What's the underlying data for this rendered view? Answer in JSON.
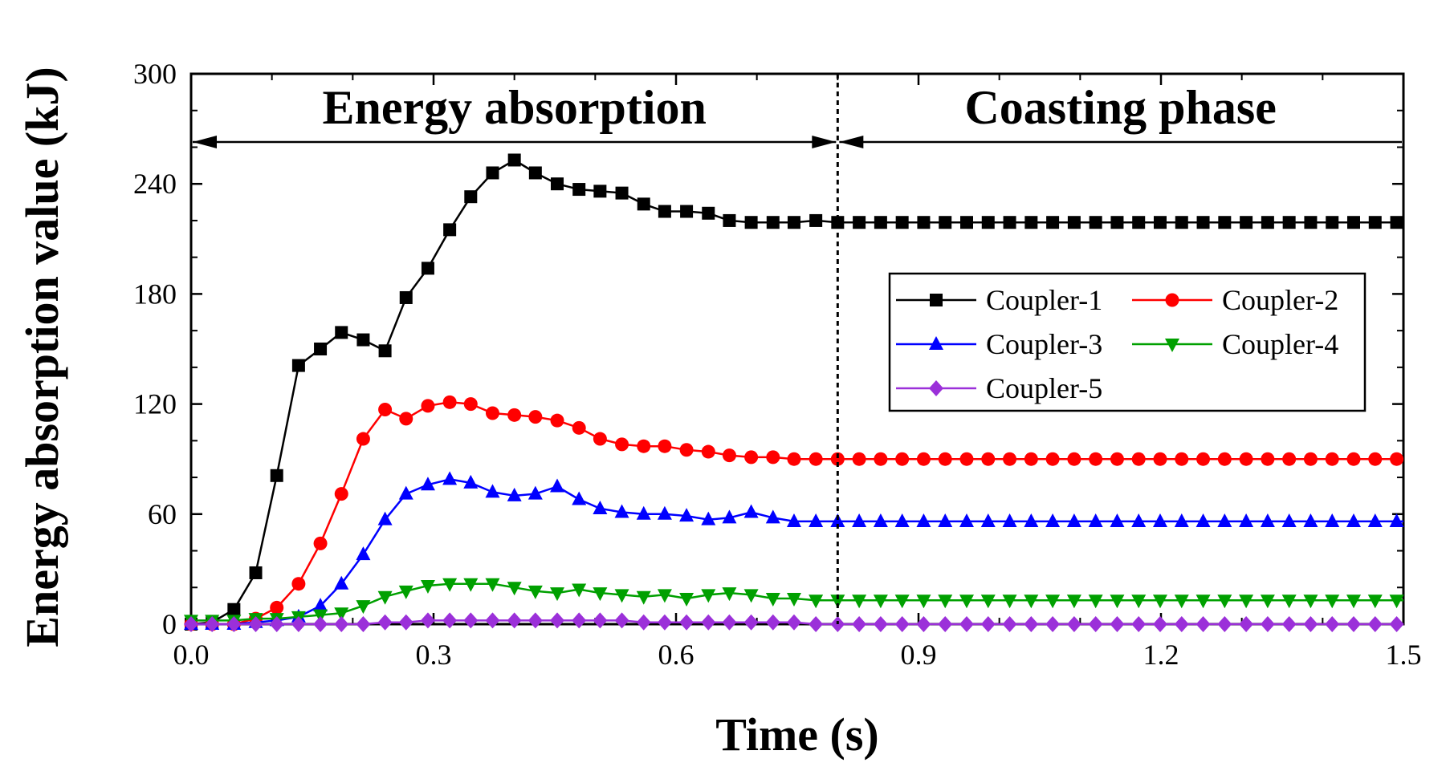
{
  "chart_data": {
    "type": "line",
    "title": "",
    "xlabel": "Time (s)",
    "ylabel": "Energy absorption value (kJ)",
    "xlim": [
      0.0,
      1.5
    ],
    "ylim": [
      0,
      300
    ],
    "xticks": [
      "0.0",
      "0.3",
      "0.6",
      "0.9",
      "1.2",
      "1.5"
    ],
    "yticks": [
      "0",
      "60",
      "120",
      "180",
      "240",
      "300"
    ],
    "x_tick_values": [
      0.0,
      0.3,
      0.6,
      0.9,
      1.2,
      1.5
    ],
    "y_tick_values": [
      0,
      60,
      120,
      180,
      240,
      300
    ],
    "grid": false,
    "legend_position": "right",
    "phases": [
      {
        "label": "Energy absorption",
        "start": 0.0,
        "end": 0.8
      },
      {
        "label": "Coasting phase",
        "start": 0.8,
        "end": 1.5
      }
    ],
    "phase_boundary": 0.8,
    "series": [
      {
        "name": "Coupler-1",
        "color": "#000000",
        "marker": "square",
        "points": [
          [
            0.0,
            0
          ],
          [
            0.026,
            1
          ],
          [
            0.053,
            8
          ],
          [
            0.08,
            28
          ],
          [
            0.106,
            81
          ],
          [
            0.133,
            141
          ],
          [
            0.16,
            150
          ],
          [
            0.186,
            159
          ],
          [
            0.213,
            155
          ],
          [
            0.24,
            149
          ],
          [
            0.266,
            178
          ],
          [
            0.293,
            194
          ],
          [
            0.32,
            215
          ],
          [
            0.346,
            233
          ],
          [
            0.373,
            246
          ],
          [
            0.4,
            253
          ],
          [
            0.426,
            246
          ],
          [
            0.453,
            240
          ],
          [
            0.48,
            237
          ],
          [
            0.506,
            236
          ],
          [
            0.533,
            235
          ],
          [
            0.56,
            229
          ],
          [
            0.586,
            225
          ],
          [
            0.613,
            225
          ],
          [
            0.64,
            224
          ],
          [
            0.666,
            220
          ],
          [
            0.693,
            219
          ],
          [
            0.72,
            219
          ],
          [
            0.746,
            219
          ],
          [
            0.773,
            220
          ],
          [
            0.8,
            219
          ],
          [
            1.5,
            219
          ]
        ]
      },
      {
        "name": "Coupler-2",
        "color": "#ff0000",
        "marker": "circle",
        "points": [
          [
            0.0,
            0
          ],
          [
            0.026,
            0
          ],
          [
            0.053,
            0
          ],
          [
            0.08,
            3
          ],
          [
            0.106,
            9
          ],
          [
            0.133,
            22
          ],
          [
            0.16,
            44
          ],
          [
            0.186,
            71
          ],
          [
            0.213,
            101
          ],
          [
            0.24,
            117
          ],
          [
            0.266,
            112
          ],
          [
            0.293,
            119
          ],
          [
            0.32,
            121
          ],
          [
            0.346,
            120
          ],
          [
            0.373,
            115
          ],
          [
            0.4,
            114
          ],
          [
            0.426,
            113
          ],
          [
            0.453,
            111
          ],
          [
            0.48,
            107
          ],
          [
            0.506,
            101
          ],
          [
            0.533,
            98
          ],
          [
            0.56,
            97
          ],
          [
            0.586,
            97
          ],
          [
            0.613,
            95
          ],
          [
            0.64,
            94
          ],
          [
            0.666,
            92
          ],
          [
            0.693,
            91
          ],
          [
            0.72,
            91
          ],
          [
            0.746,
            90
          ],
          [
            0.773,
            90
          ],
          [
            0.8,
            90
          ],
          [
            1.5,
            90
          ]
        ]
      },
      {
        "name": "Coupler-3",
        "color": "#0000ff",
        "marker": "triangle-up",
        "points": [
          [
            0.0,
            0
          ],
          [
            0.026,
            0
          ],
          [
            0.053,
            0
          ],
          [
            0.08,
            1
          ],
          [
            0.106,
            2
          ],
          [
            0.133,
            4
          ],
          [
            0.16,
            10
          ],
          [
            0.186,
            22
          ],
          [
            0.213,
            38
          ],
          [
            0.24,
            57
          ],
          [
            0.266,
            71
          ],
          [
            0.293,
            76
          ],
          [
            0.32,
            79
          ],
          [
            0.346,
            77
          ],
          [
            0.373,
            72
          ],
          [
            0.4,
            70
          ],
          [
            0.426,
            71
          ],
          [
            0.453,
            75
          ],
          [
            0.48,
            68
          ],
          [
            0.506,
            63
          ],
          [
            0.533,
            61
          ],
          [
            0.56,
            60
          ],
          [
            0.586,
            60
          ],
          [
            0.613,
            59
          ],
          [
            0.64,
            57
          ],
          [
            0.666,
            58
          ],
          [
            0.693,
            61
          ],
          [
            0.72,
            58
          ],
          [
            0.746,
            56
          ],
          [
            0.773,
            56
          ],
          [
            0.8,
            56
          ],
          [
            1.5,
            56
          ]
        ]
      },
      {
        "name": "Coupler-4",
        "color": "#00a000",
        "marker": "triangle-down",
        "points": [
          [
            0.0,
            2
          ],
          [
            0.026,
            2
          ],
          [
            0.053,
            2
          ],
          [
            0.08,
            3
          ],
          [
            0.106,
            3
          ],
          [
            0.133,
            4
          ],
          [
            0.16,
            5
          ],
          [
            0.186,
            6
          ],
          [
            0.213,
            10
          ],
          [
            0.24,
            15
          ],
          [
            0.266,
            18
          ],
          [
            0.293,
            21
          ],
          [
            0.32,
            22
          ],
          [
            0.346,
            22
          ],
          [
            0.373,
            22
          ],
          [
            0.4,
            20
          ],
          [
            0.426,
            18
          ],
          [
            0.453,
            17
          ],
          [
            0.48,
            19
          ],
          [
            0.506,
            17
          ],
          [
            0.533,
            16
          ],
          [
            0.56,
            15
          ],
          [
            0.586,
            16
          ],
          [
            0.613,
            14
          ],
          [
            0.64,
            16
          ],
          [
            0.666,
            17
          ],
          [
            0.693,
            16
          ],
          [
            0.72,
            14
          ],
          [
            0.746,
            14
          ],
          [
            0.773,
            13
          ],
          [
            0.8,
            13
          ],
          [
            1.5,
            13
          ]
        ]
      },
      {
        "name": "Coupler-5",
        "color": "#9b30d9",
        "marker": "diamond",
        "points": [
          [
            0.0,
            0
          ],
          [
            0.026,
            0
          ],
          [
            0.053,
            0
          ],
          [
            0.08,
            0
          ],
          [
            0.106,
            0
          ],
          [
            0.133,
            0
          ],
          [
            0.16,
            0
          ],
          [
            0.186,
            0
          ],
          [
            0.213,
            0
          ],
          [
            0.24,
            1
          ],
          [
            0.266,
            1
          ],
          [
            0.293,
            2
          ],
          [
            0.32,
            2
          ],
          [
            0.346,
            2
          ],
          [
            0.373,
            2
          ],
          [
            0.4,
            2
          ],
          [
            0.426,
            2
          ],
          [
            0.453,
            2
          ],
          [
            0.48,
            2
          ],
          [
            0.506,
            2
          ],
          [
            0.533,
            2
          ],
          [
            0.56,
            1
          ],
          [
            0.586,
            1
          ],
          [
            0.613,
            1
          ],
          [
            0.64,
            1
          ],
          [
            0.666,
            1
          ],
          [
            0.693,
            1
          ],
          [
            0.72,
            1
          ],
          [
            0.746,
            1
          ],
          [
            0.773,
            0
          ],
          [
            0.8,
            0
          ],
          [
            1.5,
            0
          ]
        ]
      }
    ]
  }
}
